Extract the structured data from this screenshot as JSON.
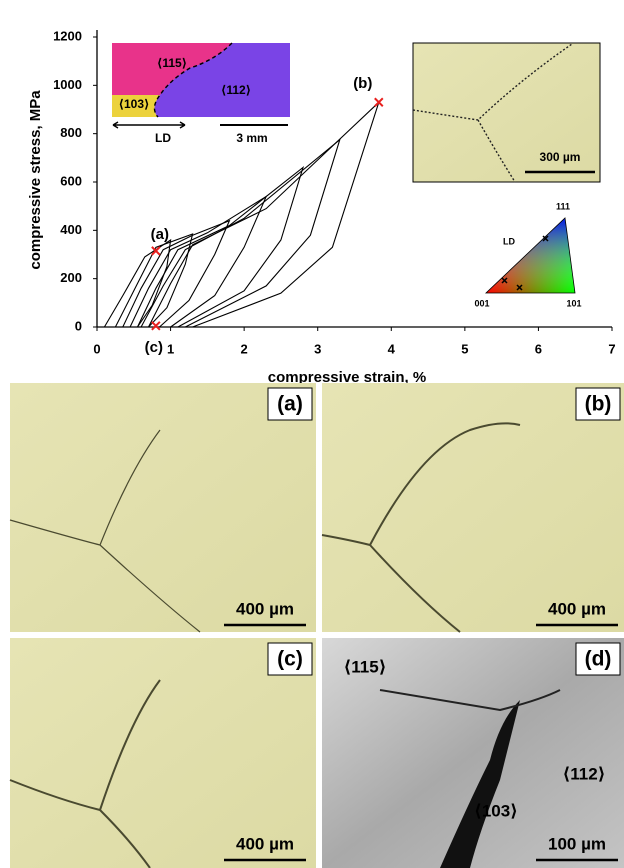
{
  "chart_data": {
    "type": "line",
    "xlabel": "compressive strain, %",
    "ylabel": "compressive stress, MPa",
    "xlim": [
      0,
      7
    ],
    "ylim": [
      0,
      1200
    ],
    "xticks": [
      0,
      1,
      2,
      3,
      4,
      5,
      6,
      7
    ],
    "yticks": [
      0,
      200,
      400,
      600,
      800,
      1000,
      1200
    ],
    "series": [
      {
        "color": "#000000",
        "x": [
          0.1,
          0.35,
          0.65,
          1.0,
          0.95,
          0.75,
          0.55
        ],
        "values": [
          0,
          130,
          290,
          360,
          250,
          90,
          0
        ]
      },
      {
        "color": "#000000",
        "x": [
          0.25,
          0.5,
          0.8,
          1.3,
          1.2,
          0.95,
          0.7
        ],
        "values": [
          0,
          150,
          330,
          385,
          260,
          80,
          0
        ]
      },
      {
        "color": "#000000",
        "x": [
          0.35,
          0.6,
          0.9,
          1.3,
          1.8,
          1.6,
          1.25,
          0.85
        ],
        "values": [
          0,
          160,
          320,
          380,
          440,
          300,
          110,
          0
        ]
      },
      {
        "color": "#000000",
        "x": [
          0.45,
          0.7,
          1.0,
          1.5,
          2.3,
          2.0,
          1.6,
          1.0
        ],
        "values": [
          0,
          160,
          320,
          390,
          540,
          330,
          130,
          0
        ]
      },
      {
        "color": "#000000",
        "x": [
          0.55,
          0.8,
          1.1,
          1.8,
          2.8,
          2.5,
          2.0,
          1.1
        ],
        "values": [
          0,
          160,
          320,
          420,
          660,
          360,
          150,
          0
        ]
      },
      {
        "color": "#000000",
        "x": [
          0.6,
          0.9,
          1.2,
          2.0,
          3.3,
          2.9,
          2.3,
          1.2
        ],
        "values": [
          0,
          170,
          320,
          450,
          775,
          380,
          170,
          0
        ]
      },
      {
        "color": "#000000",
        "x": [
          0.7,
          1.0,
          1.3,
          2.3,
          3.83,
          3.2,
          2.5,
          1.3
        ],
        "values": [
          0,
          180,
          340,
          490,
          930,
          330,
          140,
          0
        ]
      }
    ],
    "markers": {
      "color": "#e8201e",
      "x": [
        0.8,
        3.83,
        0.8
      ],
      "values": [
        315,
        930,
        5
      ],
      "labels": [
        "(a)",
        "(b)",
        "(c)"
      ]
    }
  },
  "ebsd_inset": {
    "labels": [
      "⟨115⟩",
      "⟨103⟩",
      "⟨112⟩"
    ],
    "direction": "LD",
    "scale": "3 mm"
  },
  "micro_inset": {
    "scale": "300 µm"
  },
  "ipf": {
    "corners": [
      "111",
      "001",
      "101"
    ],
    "direction": "LD"
  },
  "panels": [
    {
      "label": "(a)",
      "scale": "400 µm"
    },
    {
      "label": "(b)",
      "scale": "400 µm"
    },
    {
      "label": "(c)",
      "scale": "400 µm"
    },
    {
      "label": "(d)",
      "scale": "100 µm",
      "grains": [
        "⟨115⟩",
        "⟨112⟩",
        "⟨103⟩"
      ]
    }
  ]
}
